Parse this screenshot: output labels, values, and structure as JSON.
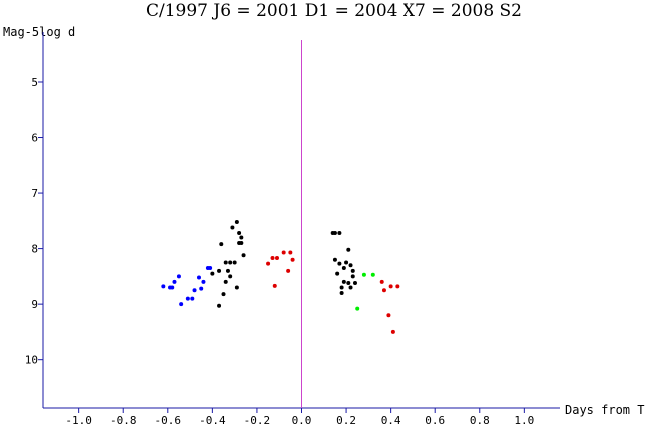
{
  "chart_data": {
    "type": "scatter",
    "title": "C/1997 J6 = 2001 D1 = 2004 X7 = 2008 S2",
    "ylabel": "Mag-5log d",
    "xlabel": "Days from T",
    "xlim": [
      -1.16,
      1.16
    ],
    "ylim": [
      4.1,
      10.87
    ],
    "y_inverted": true,
    "x_ticks": [
      -1.0,
      -0.8,
      -0.6,
      -0.4,
      -0.2,
      0.0,
      0.2,
      0.4,
      0.6,
      0.8,
      1.0
    ],
    "x_tick_labels": [
      "-1.0",
      "-0.8",
      "-0.6",
      "-0.4",
      "-0.2",
      "0.0",
      "0.2",
      "0.4",
      "0.6",
      "0.8",
      "1.0"
    ],
    "y_ticks": [
      5,
      6,
      7,
      8,
      9,
      10
    ],
    "y_tick_labels": [
      "5",
      "6",
      "7",
      "8",
      "9",
      "10"
    ],
    "perihelion_line_x": 0.0,
    "colors": {
      "axis": "#1a1aa6",
      "perihelion_line": "#cc44cc",
      "series": [
        "#0000ff",
        "#000000",
        "#dd0000",
        "#000000",
        "#00ee00",
        "#dd0000"
      ]
    },
    "series": [
      {
        "points": [
          [
            -0.62,
            8.68
          ],
          [
            -0.59,
            8.7
          ],
          [
            -0.58,
            8.7
          ],
          [
            -0.57,
            8.6
          ],
          [
            -0.55,
            8.5
          ],
          [
            -0.54,
            9.0
          ],
          [
            -0.51,
            8.9
          ],
          [
            -0.49,
            8.9
          ],
          [
            -0.48,
            8.75
          ],
          [
            -0.46,
            8.52
          ],
          [
            -0.45,
            8.72
          ],
          [
            -0.44,
            8.6
          ],
          [
            -0.42,
            8.35
          ],
          [
            -0.41,
            8.35
          ]
        ]
      },
      {
        "points": [
          [
            -0.4,
            8.45
          ],
          [
            -0.37,
            8.4
          ],
          [
            -0.37,
            9.03
          ],
          [
            -0.36,
            7.92
          ],
          [
            -0.35,
            8.82
          ],
          [
            -0.34,
            8.25
          ],
          [
            -0.34,
            8.6
          ],
          [
            -0.33,
            8.4
          ],
          [
            -0.32,
            8.5
          ],
          [
            -0.32,
            8.25
          ],
          [
            -0.31,
            7.62
          ],
          [
            -0.3,
            8.25
          ],
          [
            -0.29,
            7.52
          ],
          [
            -0.29,
            8.7
          ],
          [
            -0.28,
            7.72
          ],
          [
            -0.28,
            7.9
          ],
          [
            -0.27,
            7.9
          ],
          [
            -0.27,
            7.8
          ],
          [
            -0.26,
            8.12
          ]
        ]
      },
      {
        "points": [
          [
            -0.15,
            8.27
          ],
          [
            -0.13,
            8.17
          ],
          [
            -0.12,
            8.67
          ],
          [
            -0.11,
            8.17
          ],
          [
            -0.08,
            8.07
          ],
          [
            -0.06,
            8.4
          ],
          [
            -0.05,
            8.07
          ],
          [
            -0.04,
            8.2
          ]
        ]
      },
      {
        "points": [
          [
            0.14,
            7.72
          ],
          [
            0.15,
            7.72
          ],
          [
            0.15,
            8.2
          ],
          [
            0.16,
            8.45
          ],
          [
            0.17,
            8.27
          ],
          [
            0.17,
            7.72
          ],
          [
            0.18,
            8.7
          ],
          [
            0.18,
            8.8
          ],
          [
            0.19,
            8.6
          ],
          [
            0.19,
            8.35
          ],
          [
            0.2,
            8.25
          ],
          [
            0.21,
            8.62
          ],
          [
            0.21,
            8.02
          ],
          [
            0.22,
            8.3
          ],
          [
            0.22,
            8.7
          ],
          [
            0.23,
            8.4
          ],
          [
            0.23,
            8.5
          ],
          [
            0.24,
            8.62
          ]
        ]
      },
      {
        "points": [
          [
            0.25,
            9.08
          ],
          [
            0.28,
            8.47
          ],
          [
            0.32,
            8.47
          ]
        ]
      },
      {
        "points": [
          [
            0.36,
            8.6
          ],
          [
            0.37,
            8.75
          ],
          [
            0.39,
            9.2
          ],
          [
            0.4,
            8.68
          ],
          [
            0.41,
            9.5
          ],
          [
            0.43,
            8.68
          ]
        ]
      }
    ]
  }
}
